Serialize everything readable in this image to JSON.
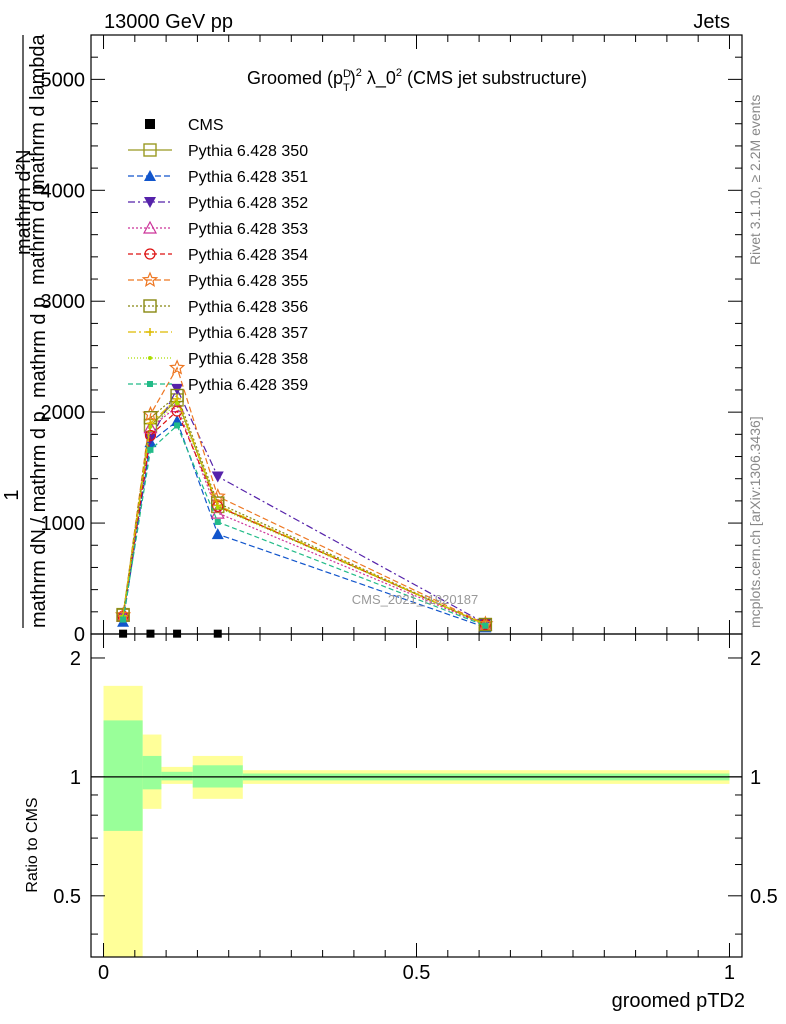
{
  "header": {
    "left_text": "13000 GeV pp",
    "right_text": "Jets"
  },
  "side_text": {
    "rivet": "Rivet 3.1.10, ≥ 2.2M events",
    "mcplots": "mcplots.cern.ch [arXiv:1306.3436]"
  },
  "watermark": "CMS_2021_I1920187",
  "chart_data": [
    {
      "type": "line",
      "title_main": "Groomed",
      "title_rest": "λ_0",
      "title_tail": " (CMS jet substructure)",
      "ylabel": "1 / mathrm dN / mathrm d p_T mathrm d p_T mathrm d lambda / mathrm d²N",
      "xlabel": "groomed pTD2",
      "xlim": [
        -0.02,
        1.02
      ],
      "ylim": [
        0,
        5400
      ],
      "y_ticks": [
        0,
        1000,
        2000,
        3000,
        4000,
        5000
      ],
      "y_tick_labels": [
        "0",
        "1000",
        "2000",
        "3000",
        "4000",
        "5000"
      ],
      "x": [
        0.03125,
        0.075,
        0.1175,
        0.1825,
        0.61
      ],
      "cms_values": [
        3,
        3,
        3,
        3,
        0
      ],
      "series": [
        {
          "name": "Pythia 6.428 350",
          "color": "#999922",
          "dash": "",
          "marker": "square-open",
          "values": [
            175,
            1880,
            2110,
            1150,
            85
          ]
        },
        {
          "name": "Pythia 6.428 351",
          "color": "#1155cc",
          "dash": "6,3",
          "marker": "triangle-up",
          "values": [
            110,
            1730,
            1920,
            900,
            60
          ]
        },
        {
          "name": "Pythia 6.428 352",
          "color": "#5522aa",
          "dash": "7,3,2,3",
          "marker": "triangle-down",
          "values": [
            150,
            1760,
            2210,
            1420,
            95
          ]
        },
        {
          "name": "Pythia 6.428 353",
          "color": "#cc3399",
          "dash": "2,2",
          "marker": "triangle-open",
          "values": [
            160,
            1860,
            2050,
            1090,
            80
          ]
        },
        {
          "name": "Pythia 6.428 354",
          "color": "#dd1111",
          "dash": "5,3",
          "marker": "circle-open",
          "values": [
            160,
            1790,
            2010,
            1150,
            85
          ]
        },
        {
          "name": "Pythia 6.428 355",
          "color": "#ee7722",
          "dash": "6,3",
          "marker": "star-open",
          "values": [
            170,
            1980,
            2400,
            1240,
            90
          ]
        },
        {
          "name": "Pythia 6.428 356",
          "color": "#888811",
          "dash": "2,2",
          "marker": "square-open",
          "values": [
            170,
            1950,
            2150,
            1180,
            85
          ]
        },
        {
          "name": "Pythia 6.428 357",
          "color": "#ddbb00",
          "dash": "8,3,2,3",
          "marker": "cross",
          "values": [
            165,
            1900,
            2120,
            1160,
            85
          ]
        },
        {
          "name": "Pythia 6.428 358",
          "color": "#aadd00",
          "dash": "1,2",
          "marker": "dot",
          "values": [
            160,
            1870,
            2080,
            1140,
            85
          ]
        },
        {
          "name": "Pythia 6.428 359",
          "color": "#22bb88",
          "dash": "5,3",
          "marker": "square-small",
          "values": [
            130,
            1660,
            1880,
            1010,
            75
          ]
        }
      ],
      "legend": {
        "placement": "top-left",
        "cms_label": "CMS"
      }
    },
    {
      "type": "area",
      "ylabel": "Ratio to CMS",
      "ylim": [
        0.35,
        2.3
      ],
      "y_ticks": [
        0.5,
        1,
        2
      ],
      "y_tick_labels": [
        "0.5",
        "1",
        "2"
      ],
      "x_ticks": [
        0,
        0.5,
        1
      ],
      "x_tick_labels": [
        "0",
        "0.5",
        "1"
      ],
      "bands": [
        {
          "x0": 0.0,
          "x1": 0.0625,
          "stat_lo": 0.73,
          "stat_hi": 1.39,
          "tot_lo": 0.3,
          "tot_hi": 1.7
        },
        {
          "x0": 0.0625,
          "x1": 0.0925,
          "stat_lo": 0.93,
          "stat_hi": 1.13,
          "tot_lo": 0.83,
          "tot_hi": 1.28
        },
        {
          "x0": 0.0925,
          "x1": 0.1425,
          "stat_lo": 0.98,
          "stat_hi": 1.03,
          "tot_lo": 0.96,
          "tot_hi": 1.06
        },
        {
          "x0": 0.1425,
          "x1": 0.2225,
          "stat_lo": 0.94,
          "stat_hi": 1.07,
          "tot_lo": 0.88,
          "tot_hi": 1.13
        },
        {
          "x0": 0.2225,
          "x1": 1.0,
          "stat_lo": 0.98,
          "stat_hi": 1.02,
          "tot_lo": 0.96,
          "tot_hi": 1.04
        }
      ],
      "colors": {
        "stat": "#99ff99",
        "total": "#ffff99"
      }
    }
  ]
}
